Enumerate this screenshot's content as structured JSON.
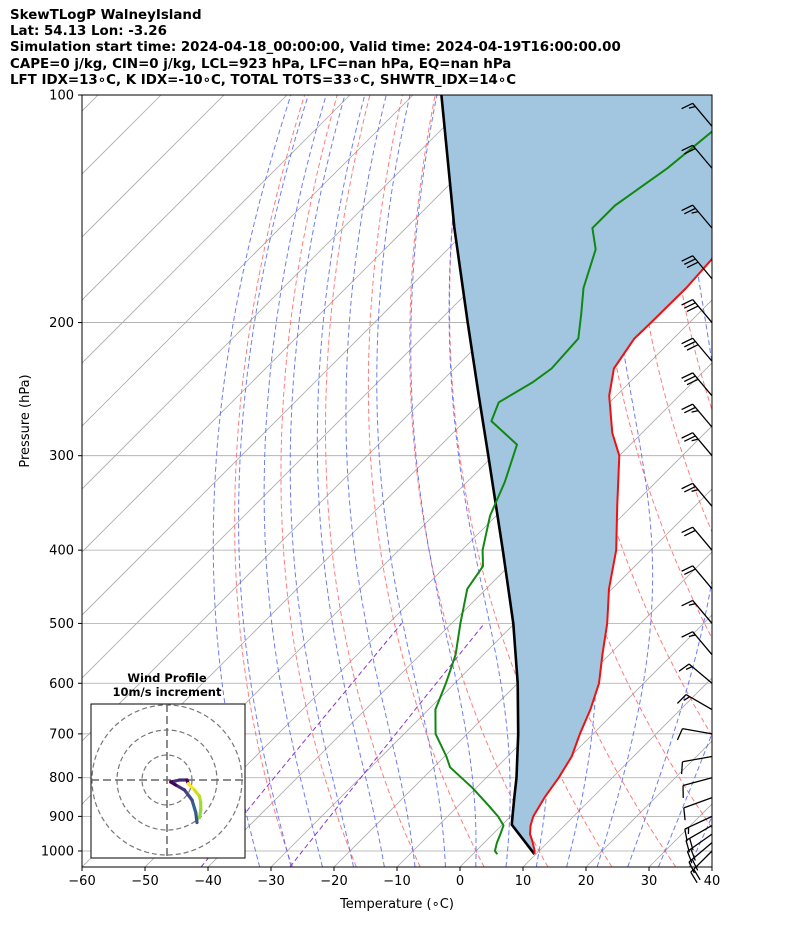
{
  "header": {
    "title": "SkewTLogP WalneyIsland",
    "location": "Lat: 54.13   Lon: -3.26",
    "times": "Simulation start time: 2024-04-18_00:00:00, Valid time: 2024-04-19T16:00:00.00",
    "params": "CAPE=0 j/kg, CIN=0 j/kg, LCL=923 hPa, LFC=nan hPa, EQ=nan hPa",
    "indices": "LFT IDX=13∘C, K IDX=-10∘C, TOTAL TOTS=33∘C, SHWTR_IDX=14∘C"
  },
  "chart_data": {
    "type": "skew-t",
    "xlabel": "Temperature (∘C)",
    "ylabel": "Pressure (hPa)",
    "xlim": [
      -60,
      40
    ],
    "ylim": [
      1050,
      100
    ],
    "x_ticks": [
      -60,
      -50,
      -40,
      -30,
      -20,
      -10,
      0,
      10,
      20,
      30,
      40
    ],
    "y_ticks": [
      1000,
      900,
      800,
      700,
      600,
      500,
      400,
      300,
      200,
      100
    ],
    "y_scale": "log",
    "grid": true,
    "colors": {
      "temperature": "#ee1111",
      "dewpoint": "#118811",
      "parcel": "#000000",
      "shading": "#a3c6e0",
      "dry_adiabats": "#ff6666",
      "moist_adiabats": "#5566ee",
      "isotherms": "#aaaaaa",
      "mixing_ratio": "#8833cc"
    },
    "temperature_profile": [
      {
        "p": 1010,
        "t": 9.8
      },
      {
        "p": 1000,
        "t": 9.3
      },
      {
        "p": 975,
        "t": 7.7
      },
      {
        "p": 950,
        "t": 5.9
      },
      {
        "p": 925,
        "t": 4.6
      },
      {
        "p": 900,
        "t": 3.6
      },
      {
        "p": 850,
        "t": 2.4
      },
      {
        "p": 800,
        "t": 1.5
      },
      {
        "p": 750,
        "t": 0.2
      },
      {
        "p": 700,
        "t": -2.1
      },
      {
        "p": 650,
        "t": -4.3
      },
      {
        "p": 600,
        "t": -7.1
      },
      {
        "p": 550,
        "t": -11.1
      },
      {
        "p": 500,
        "t": -15.3
      },
      {
        "p": 450,
        "t": -20.5
      },
      {
        "p": 400,
        "t": -25.5
      },
      {
        "p": 350,
        "t": -32.3
      },
      {
        "p": 300,
        "t": -40.0
      },
      {
        "p": 280,
        "t": -44.7
      },
      {
        "p": 250,
        "t": -51.1
      },
      {
        "p": 230,
        "t": -54.7
      },
      {
        "p": 210,
        "t": -56.2
      },
      {
        "p": 200,
        "t": -56.1
      },
      {
        "p": 180,
        "t": -56.0
      },
      {
        "p": 165,
        "t": -56.5
      },
      {
        "p": 150,
        "t": -59.0
      },
      {
        "p": 140,
        "t": -60.3
      },
      {
        "p": 125,
        "t": -63.5
      },
      {
        "p": 110,
        "t": -64.0
      },
      {
        "p": 100,
        "t": -65.0
      }
    ],
    "dewpoint_profile": [
      {
        "p": 1010,
        "t": 3.9
      },
      {
        "p": 1000,
        "t": 3.0
      },
      {
        "p": 975,
        "t": 2.0
      },
      {
        "p": 950,
        "t": 1.2
      },
      {
        "p": 925,
        "t": 0.3
      },
      {
        "p": 900,
        "t": -2.0
      },
      {
        "p": 870,
        "t": -5.3
      },
      {
        "p": 825,
        "t": -10.6
      },
      {
        "p": 775,
        "t": -17.4
      },
      {
        "p": 750,
        "t": -19.7
      },
      {
        "p": 700,
        "t": -25.0
      },
      {
        "p": 650,
        "t": -28.9
      },
      {
        "p": 600,
        "t": -31.4
      },
      {
        "p": 550,
        "t": -34.4
      },
      {
        "p": 500,
        "t": -38.6
      },
      {
        "p": 450,
        "t": -43.0
      },
      {
        "p": 420,
        "t": -44.1
      },
      {
        "p": 400,
        "t": -46.7
      },
      {
        "p": 360,
        "t": -51.0
      },
      {
        "p": 325,
        "t": -54.0
      },
      {
        "p": 290,
        "t": -58.0
      },
      {
        "p": 270,
        "t": -65.8
      },
      {
        "p": 255,
        "t": -67.6
      },
      {
        "p": 240,
        "t": -65.4
      },
      {
        "p": 230,
        "t": -64.6
      },
      {
        "p": 210,
        "t": -65.1
      },
      {
        "p": 195,
        "t": -68.5
      },
      {
        "p": 180,
        "t": -72.3
      },
      {
        "p": 160,
        "t": -76.5
      },
      {
        "p": 150,
        "t": -80.4
      },
      {
        "p": 140,
        "t": -80.4
      },
      {
        "p": 125,
        "t": -78.0
      },
      {
        "p": 100,
        "t": -75.5
      }
    ],
    "parcel_profile": [
      {
        "p": 1010,
        "t": 9.8
      },
      {
        "p": 923,
        "t": 1.5
      },
      {
        "p": 900,
        "t": 0.3
      },
      {
        "p": 850,
        "t": -2.4
      },
      {
        "p": 800,
        "t": -5.2
      },
      {
        "p": 700,
        "t": -11.9
      },
      {
        "p": 600,
        "t": -20.0
      },
      {
        "p": 500,
        "t": -30.2
      },
      {
        "p": 400,
        "t": -43.5
      },
      {
        "p": 300,
        "t": -60.8
      },
      {
        "p": 250,
        "t": -71.8
      },
      {
        "p": 200,
        "t": -85.2
      },
      {
        "p": 150,
        "t": -102.3
      },
      {
        "p": 100,
        "t": -125.5
      }
    ],
    "wind_barbs": [
      {
        "p": 1000,
        "speed": 20,
        "dir": 225
      },
      {
        "p": 975,
        "speed": 20,
        "dir": 230
      },
      {
        "p": 950,
        "speed": 20,
        "dir": 235
      },
      {
        "p": 925,
        "speed": 20,
        "dir": 240
      },
      {
        "p": 900,
        "speed": 15,
        "dir": 245
      },
      {
        "p": 850,
        "speed": 10,
        "dir": 250
      },
      {
        "p": 800,
        "speed": 10,
        "dir": 255
      },
      {
        "p": 750,
        "speed": 10,
        "dir": 260
      },
      {
        "p": 700,
        "speed": 10,
        "dir": 280
      },
      {
        "p": 650,
        "speed": 15,
        "dir": 300
      },
      {
        "p": 600,
        "speed": 15,
        "dir": 310
      },
      {
        "p": 550,
        "speed": 15,
        "dir": 320
      },
      {
        "p": 500,
        "speed": 15,
        "dir": 320
      },
      {
        "p": 450,
        "speed": 20,
        "dir": 320
      },
      {
        "p": 400,
        "speed": 20,
        "dir": 320
      },
      {
        "p": 350,
        "speed": 25,
        "dir": 320
      },
      {
        "p": 300,
        "speed": 25,
        "dir": 320
      },
      {
        "p": 275,
        "speed": 25,
        "dir": 320
      },
      {
        "p": 250,
        "speed": 30,
        "dir": 320
      },
      {
        "p": 225,
        "speed": 30,
        "dir": 320
      },
      {
        "p": 200,
        "speed": 30,
        "dir": 320
      },
      {
        "p": 175,
        "speed": 30,
        "dir": 320
      },
      {
        "p": 150,
        "speed": 25,
        "dir": 320
      },
      {
        "p": 125,
        "speed": 20,
        "dir": 320
      },
      {
        "p": 110,
        "speed": 15,
        "dir": 320
      }
    ],
    "hodograph": {
      "title": "Wind Profile",
      "subtitle": "10m/s increment",
      "points": [
        {
          "u": 12.0,
          "v": -17.0
        },
        {
          "u": 11.5,
          "v": -13.0
        },
        {
          "u": 10.0,
          "v": -8.0
        },
        {
          "u": 7.0,
          "v": -4.0
        },
        {
          "u": 3.5,
          "v": -2.0
        },
        {
          "u": 1.5,
          "v": -0.8
        },
        {
          "u": 3.0,
          "v": -0.5
        },
        {
          "u": 5.0,
          "v": 0.0
        },
        {
          "u": 8.0,
          "v": 0.0
        },
        {
          "u": 8.5,
          "v": -1.5
        },
        {
          "u": 11.0,
          "v": -4.0
        },
        {
          "u": 13.0,
          "v": -6.5
        },
        {
          "u": 13.5,
          "v": -9.0
        },
        {
          "u": 13.5,
          "v": -12.0
        },
        {
          "u": 13.0,
          "v": -15.0
        }
      ]
    }
  }
}
